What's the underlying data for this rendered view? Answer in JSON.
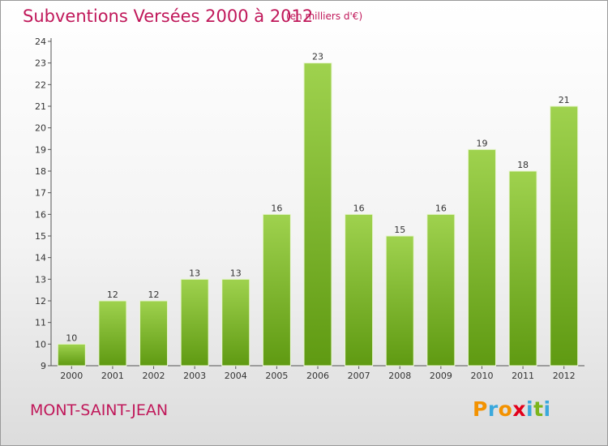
{
  "header": {
    "title": "Subventions Versées 2000 à 2012",
    "units": "(en milliers d'€)"
  },
  "footer": {
    "commune": "MONT-SAINT-JEAN",
    "logo_letters": [
      "P",
      "r",
      "o",
      "x",
      "i",
      "t",
      "i"
    ],
    "logo_colors": [
      "#f39200",
      "#3aa8dc",
      "#f39200",
      "#e2001a",
      "#3aa8dc",
      "#7cb51c",
      "#3aa8dc"
    ]
  },
  "colors": {
    "bar_light": "#9fd24e",
    "bar_dark": "#5f9a12",
    "accent": "#c0185a"
  },
  "chart_data": {
    "type": "bar",
    "title": "Subventions Versées 2000 à 2012",
    "xlabel": "",
    "ylabel": "",
    "categories": [
      "2000",
      "2001",
      "2002",
      "2003",
      "2004",
      "2005",
      "2006",
      "2007",
      "2008",
      "2009",
      "2010",
      "2011",
      "2012"
    ],
    "values": [
      10,
      12,
      12,
      13,
      13,
      16,
      23,
      16,
      15,
      16,
      19,
      18,
      21
    ],
    "ylim": [
      9,
      24
    ],
    "yticks": [
      9,
      10,
      11,
      12,
      13,
      14,
      15,
      16,
      17,
      18,
      19,
      20,
      21,
      22,
      23,
      24
    ],
    "grid": false,
    "legend": "none"
  }
}
